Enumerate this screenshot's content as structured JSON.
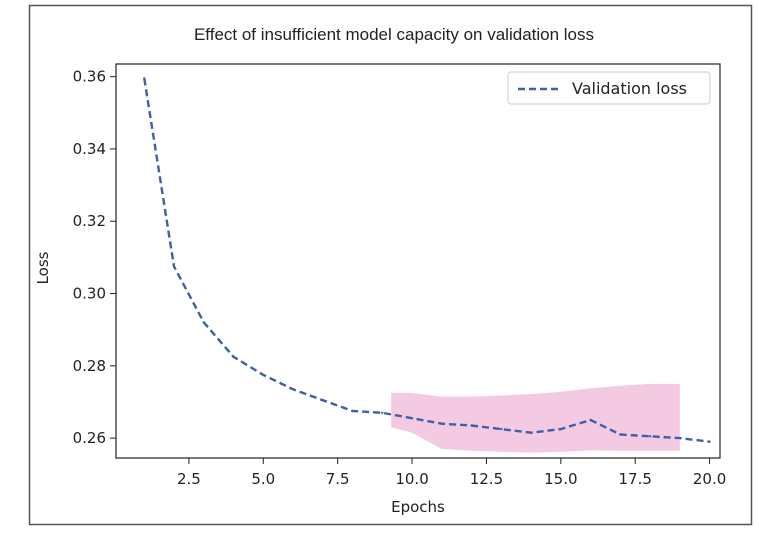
{
  "chart_data": {
    "type": "line",
    "title": "Effect of insufficient model capacity on validation loss",
    "xlabel": "Epochs",
    "ylabel": "Loss",
    "xlim": [
      0.05,
      20.35
    ],
    "ylim": [
      0.2545,
      0.3635
    ],
    "xticks": [
      "2.5",
      "5.0",
      "7.5",
      "10.0",
      "12.5",
      "15.0",
      "17.5",
      "20.0"
    ],
    "xtick_values": [
      2.5,
      5.0,
      7.5,
      10.0,
      12.5,
      15.0,
      17.5,
      20.0
    ],
    "yticks": [
      "0.26",
      "0.28",
      "0.30",
      "0.32",
      "0.34",
      "0.36"
    ],
    "ytick_values": [
      0.26,
      0.28,
      0.3,
      0.32,
      0.34,
      0.36
    ],
    "grid": false,
    "legend_position": "upper-right",
    "series": [
      {
        "name": "Validation loss",
        "style": "dashed",
        "color": "#3f5faa",
        "x": [
          1,
          2,
          3,
          4,
          5,
          6,
          7,
          8,
          9,
          10,
          11,
          12,
          13,
          14,
          15,
          16,
          17,
          18,
          19,
          20
        ],
        "y": [
          0.3595,
          0.3075,
          0.292,
          0.2825,
          0.2775,
          0.2735,
          0.2705,
          0.2675,
          0.267,
          0.2655,
          0.264,
          0.2635,
          0.2625,
          0.2615,
          0.2625,
          0.265,
          0.261,
          0.2605,
          0.26,
          0.259
        ]
      }
    ],
    "highlight_band": {
      "color": "#f0b8d8",
      "x": [
        9.3,
        10,
        11,
        12,
        13,
        14,
        15,
        16,
        17,
        18,
        19
      ],
      "upper": [
        0.2725,
        0.2725,
        0.2715,
        0.2715,
        0.2718,
        0.2722,
        0.2728,
        0.2738,
        0.2745,
        0.275,
        0.275
      ],
      "lower": [
        0.263,
        0.2615,
        0.257,
        0.2565,
        0.2562,
        0.256,
        0.2562,
        0.2566,
        0.2565,
        0.2565,
        0.2565
      ]
    }
  }
}
